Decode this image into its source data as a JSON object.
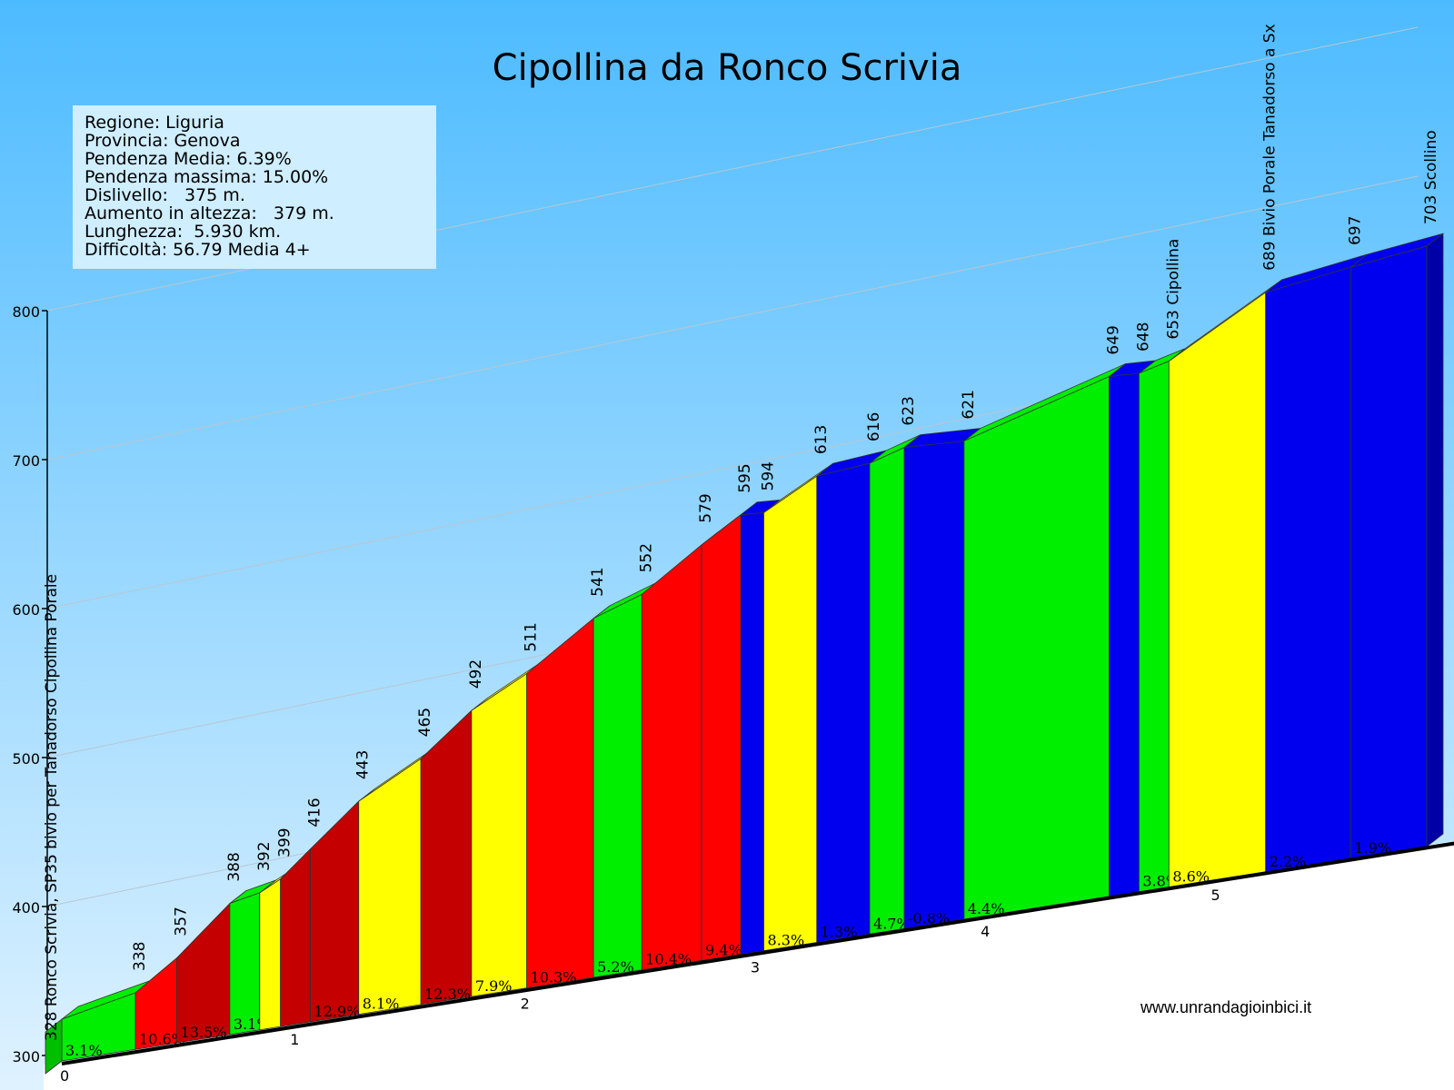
{
  "title": "Cipollina da Ronco Scrivia",
  "info": {
    "regione": "Regione: Liguria",
    "provincia": "Provincia: Genova",
    "pendenza_media": "Pendenza Media: 6.39%",
    "pendenza_massima": "Pendenza massima: 15.00%",
    "dislivello": "Dislivello:   375 m.",
    "aumento": "Aumento in altezza:   379 m.",
    "lunghezza": "Lunghezza:  5.930 km.",
    "difficolta": "Difficoltà: 56.79 Media 4+"
  },
  "credit": "www.unrandagioinbici.it",
  "colors": {
    "sky_top": "#4dbbff",
    "sky_bottom": "#dff2ff",
    "green": "#00ee00",
    "yellow": "#ffff00",
    "red": "#ff0000",
    "darkred": "#c40000",
    "blue": "#0000ee",
    "light_green": "#00aa00"
  },
  "chart_data": {
    "type": "area",
    "title": "Cipollina da Ronco Scrivia",
    "ylim": [
      300,
      800
    ],
    "y_ticks": [
      "300",
      "400",
      "500",
      "600",
      "700",
      "800"
    ],
    "x_ticks": [
      "0",
      "1",
      "2",
      "3",
      "4",
      "5"
    ],
    "xlim_km": [
      0,
      5.93
    ],
    "grid": true,
    "segments": [
      {
        "from_km": 0.0,
        "to_km": 0.32,
        "elev_start": 328,
        "elev_end": 338,
        "grade": "3.1%",
        "color": "green"
      },
      {
        "from_km": 0.32,
        "to_km": 0.5,
        "elev_start": 338,
        "elev_end": 357,
        "grade": "10.6%",
        "color": "red"
      },
      {
        "from_km": 0.5,
        "to_km": 0.73,
        "elev_start": 357,
        "elev_end": 388,
        "grade": "13.5%",
        "color": "darkred"
      },
      {
        "from_km": 0.73,
        "to_km": 0.86,
        "elev_start": 388,
        "elev_end": 392,
        "grade": "3.1%",
        "color": "green"
      },
      {
        "from_km": 0.86,
        "to_km": 0.95,
        "elev_start": 392,
        "elev_end": 399,
        "grade": "",
        "color": "yellow"
      },
      {
        "from_km": 0.95,
        "to_km": 1.08,
        "elev_start": 399,
        "elev_end": 416,
        "grade": "",
        "color": "darkred"
      },
      {
        "from_km": 1.08,
        "to_km": 1.29,
        "elev_start": 416,
        "elev_end": 443,
        "grade": "12.9%",
        "color": "darkred"
      },
      {
        "from_km": 1.29,
        "to_km": 1.56,
        "elev_start": 443,
        "elev_end": 465,
        "grade": "8.1%",
        "color": "yellow"
      },
      {
        "from_km": 1.56,
        "to_km": 1.78,
        "elev_start": 465,
        "elev_end": 492,
        "grade": "12.3%",
        "color": "darkred"
      },
      {
        "from_km": 1.78,
        "to_km": 2.02,
        "elev_start": 492,
        "elev_end": 511,
        "grade": "7.9%",
        "color": "yellow"
      },
      {
        "from_km": 2.02,
        "to_km": 2.31,
        "elev_start": 511,
        "elev_end": 541,
        "grade": "10.3%",
        "color": "red"
      },
      {
        "from_km": 2.31,
        "to_km": 2.52,
        "elev_start": 541,
        "elev_end": 552,
        "grade": "5.2%",
        "color": "green"
      },
      {
        "from_km": 2.52,
        "to_km": 2.78,
        "elev_start": 552,
        "elev_end": 579,
        "grade": "10.4%",
        "color": "red"
      },
      {
        "from_km": 2.78,
        "to_km": 2.95,
        "elev_start": 579,
        "elev_end": 595,
        "grade": "9.4%",
        "color": "red"
      },
      {
        "from_km": 2.95,
        "to_km": 3.05,
        "elev_start": 595,
        "elev_end": 594,
        "grade": "",
        "color": "blue"
      },
      {
        "from_km": 3.05,
        "to_km": 3.28,
        "elev_start": 594,
        "elev_end": 613,
        "grade": "8.3%",
        "color": "yellow"
      },
      {
        "from_km": 3.28,
        "to_km": 3.51,
        "elev_start": 613,
        "elev_end": 616,
        "grade": "1.3%",
        "color": "blue"
      },
      {
        "from_km": 3.51,
        "to_km": 3.66,
        "elev_start": 616,
        "elev_end": 623,
        "grade": "4.7%",
        "color": "green"
      },
      {
        "from_km": 3.66,
        "to_km": 3.92,
        "elev_start": 623,
        "elev_end": 621,
        "grade": "-0.8%",
        "color": "blue"
      },
      {
        "from_km": 3.92,
        "to_km": 4.55,
        "elev_start": 621,
        "elev_end": 649,
        "grade": "4.4%",
        "color": "green"
      },
      {
        "from_km": 4.55,
        "to_km": 4.68,
        "elev_start": 649,
        "elev_end": 648,
        "grade": "",
        "color": "blue"
      },
      {
        "from_km": 4.68,
        "to_km": 4.81,
        "elev_start": 648,
        "elev_end": 653,
        "grade": "3.8%",
        "color": "green"
      },
      {
        "from_km": 4.81,
        "to_km": 5.23,
        "elev_start": 653,
        "elev_end": 689,
        "grade": "8.6%",
        "color": "yellow"
      },
      {
        "from_km": 5.23,
        "to_km": 5.6,
        "elev_start": 689,
        "elev_end": 697,
        "grade": "2.2%",
        "color": "blue"
      },
      {
        "from_km": 5.6,
        "to_km": 5.93,
        "elev_start": 697,
        "elev_end": 703,
        "grade": "1.9%",
        "color": "blue"
      }
    ],
    "point_labels": [
      {
        "km": 0.0,
        "elev": 328,
        "text": "328 Ronco Scrivia, SP35 bivio per Tanadorso Cipollina Porale"
      },
      {
        "km": 0.32,
        "elev": 338,
        "text": "338"
      },
      {
        "km": 0.5,
        "elev": 357,
        "text": "357"
      },
      {
        "km": 0.73,
        "elev": 388,
        "text": "388"
      },
      {
        "km": 0.86,
        "elev": 392,
        "text": "392"
      },
      {
        "km": 0.95,
        "elev": 399,
        "text": "399"
      },
      {
        "km": 1.08,
        "elev": 416,
        "text": "416"
      },
      {
        "km": 1.29,
        "elev": 443,
        "text": "443"
      },
      {
        "km": 1.56,
        "elev": 465,
        "text": "465"
      },
      {
        "km": 1.78,
        "elev": 492,
        "text": "492"
      },
      {
        "km": 2.02,
        "elev": 511,
        "text": "511"
      },
      {
        "km": 2.31,
        "elev": 541,
        "text": "541"
      },
      {
        "km": 2.52,
        "elev": 552,
        "text": "552"
      },
      {
        "km": 2.78,
        "elev": 579,
        "text": "579"
      },
      {
        "km": 2.95,
        "elev": 595,
        "text": "595"
      },
      {
        "km": 3.05,
        "elev": 594,
        "text": "594"
      },
      {
        "km": 3.28,
        "elev": 613,
        "text": "613"
      },
      {
        "km": 3.51,
        "elev": 616,
        "text": "616"
      },
      {
        "km": 3.66,
        "elev": 623,
        "text": "623"
      },
      {
        "km": 3.92,
        "elev": 621,
        "text": "621"
      },
      {
        "km": 4.55,
        "elev": 649,
        "text": "649"
      },
      {
        "km": 4.68,
        "elev": 648,
        "text": "648"
      },
      {
        "km": 4.81,
        "elev": 653,
        "text": "653 Cipollina"
      },
      {
        "km": 5.23,
        "elev": 689,
        "text": "689 Bivio Porale Tanadorso a Sx"
      },
      {
        "km": 5.6,
        "elev": 697,
        "text": "697"
      },
      {
        "km": 5.93,
        "elev": 703,
        "text": "703 Scollino"
      }
    ]
  }
}
